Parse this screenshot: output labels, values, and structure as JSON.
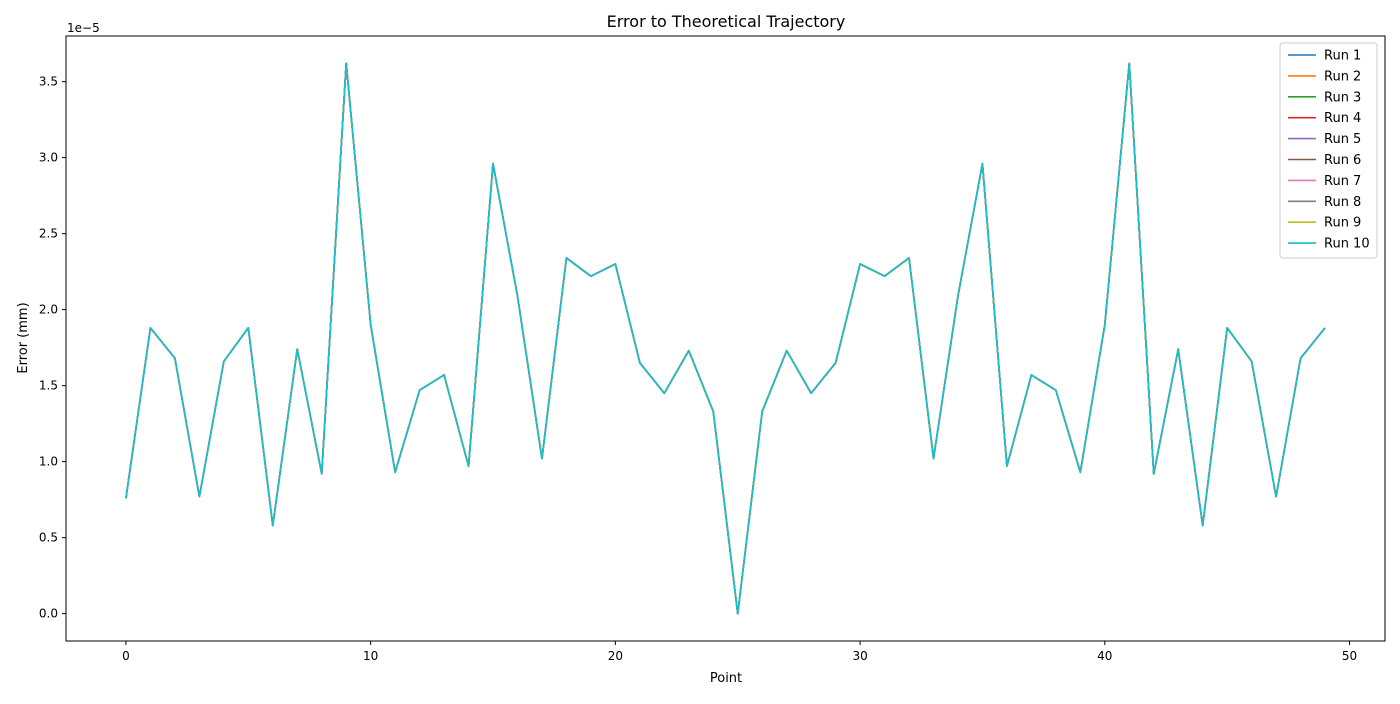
{
  "chart_data": {
    "type": "line",
    "title": "Error to Theoretical Trajectory",
    "xlabel": "Point",
    "ylabel": "Error (mm)",
    "y_offset_label": "1e−5",
    "xlim": [
      -2.45,
      51.45
    ],
    "ylim": [
      -1.8e-06,
      3.8e-05
    ],
    "xticks": [
      0,
      10,
      20,
      30,
      40,
      50
    ],
    "xtick_labels": [
      "0",
      "10",
      "20",
      "30",
      "40",
      "50"
    ],
    "yticks": [
      0,
      5e-06,
      1e-05,
      1.5e-05,
      2e-05,
      2.5e-05,
      3e-05,
      3.5e-05
    ],
    "ytick_labels": [
      "0.0",
      "0.5",
      "1.0",
      "1.5",
      "2.0",
      "2.5",
      "3.0",
      "3.5"
    ],
    "grid": false,
    "legend_position": "top-right",
    "x": [
      0,
      1,
      2,
      3,
      4,
      5,
      6,
      7,
      8,
      9,
      10,
      11,
      12,
      13,
      14,
      15,
      16,
      17,
      18,
      19,
      20,
      21,
      22,
      23,
      24,
      25,
      26,
      27,
      28,
      29,
      30,
      31,
      32,
      33,
      34,
      35,
      36,
      37,
      38,
      39,
      40,
      41,
      42,
      43,
      44,
      45,
      46,
      47,
      48,
      49
    ],
    "values": [
      7.6e-06,
      1.88e-05,
      1.68e-05,
      7.7e-06,
      1.66e-05,
      1.88e-05,
      5.8e-06,
      1.74e-05,
      9.2e-06,
      3.62e-05,
      1.9e-05,
      9.3e-06,
      1.47e-05,
      1.57e-05,
      9.7e-06,
      2.96e-05,
      2.09e-05,
      1.02e-05,
      2.34e-05,
      2.22e-05,
      2.3e-05,
      1.65e-05,
      1.45e-05,
      1.73e-05,
      1.33e-05,
      0.0,
      1.33e-05,
      1.73e-05,
      1.45e-05,
      1.65e-05,
      2.3e-05,
      2.22e-05,
      2.34e-05,
      1.02e-05,
      2.09e-05,
      2.96e-05,
      9.7e-06,
      1.57e-05,
      1.47e-05,
      9.3e-06,
      1.9e-05,
      3.62e-05,
      9.2e-06,
      1.74e-05,
      5.8e-06,
      1.88e-05,
      1.66e-05,
      7.7e-06,
      1.68e-05,
      1.88e-05
    ],
    "series": [
      {
        "name": "Run 1",
        "color": "#1f77b4"
      },
      {
        "name": "Run 2",
        "color": "#ff7f0e"
      },
      {
        "name": "Run 3",
        "color": "#2ca02c"
      },
      {
        "name": "Run 4",
        "color": "#d62728"
      },
      {
        "name": "Run 5",
        "color": "#9467bd"
      },
      {
        "name": "Run 6",
        "color": "#8c564b"
      },
      {
        "name": "Run 7",
        "color": "#e377c2"
      },
      {
        "name": "Run 8",
        "color": "#7f7f7f"
      },
      {
        "name": "Run 9",
        "color": "#bcbd22"
      },
      {
        "name": "Run 10",
        "color": "#17becf"
      }
    ],
    "series_note_identical": true
  }
}
